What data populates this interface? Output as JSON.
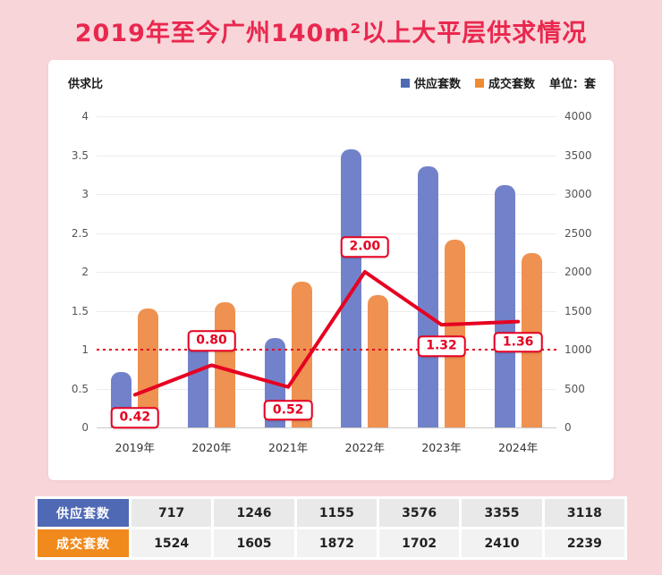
{
  "page": {
    "title": "2019年至今广州140m²以上大平层供求情况",
    "background_color": "#f8d5d8",
    "title_color": "#e9284f"
  },
  "chart": {
    "left_axis_title": "供求比",
    "legend": [
      {
        "label": "供应套数",
        "color": "#4f69b5"
      },
      {
        "label": "成交套数",
        "color": "#ef8b33"
      }
    ],
    "unit_label": "单位：套"
  },
  "chart_data": {
    "type": "bar",
    "categories": [
      "2019年",
      "2020年",
      "2021年",
      "2022年",
      "2023年",
      "2024年"
    ],
    "series": [
      {
        "name": "供应套数",
        "type": "bar",
        "axis": "right",
        "color": "#7282ca",
        "values": [
          717,
          1246,
          1155,
          3576,
          3355,
          3118
        ]
      },
      {
        "name": "成交套数",
        "type": "bar",
        "axis": "right",
        "color": "#ef9150",
        "values": [
          1524,
          1605,
          1872,
          1702,
          2410,
          2239
        ]
      },
      {
        "name": "供求比",
        "type": "line",
        "axis": "left",
        "color": "#e60021",
        "values": [
          0.42,
          0.8,
          0.52,
          2.0,
          1.32,
          1.36
        ],
        "labels": [
          "0.42",
          "0.80",
          "0.52",
          "2.00",
          "1.32",
          "1.36"
        ]
      }
    ],
    "left_axis": {
      "label": "供求比",
      "min": 0,
      "max": 4,
      "ticks": [
        0,
        0.5,
        1,
        1.5,
        2,
        2.5,
        3,
        3.5,
        4
      ]
    },
    "right_axis": {
      "label": "单位：套",
      "min": 0,
      "max": 4000,
      "ticks": [
        0,
        500,
        1000,
        1500,
        2000,
        2500,
        3000,
        3500,
        4000
      ]
    },
    "reference_line": {
      "value": 1,
      "style": "dotted",
      "color": "#e60021"
    },
    "grid": true,
    "legend_position": "top-right"
  },
  "table": {
    "rows": [
      {
        "label": "供应套数",
        "color": "#4f69b5",
        "cell_bg": "#e9e9e9",
        "values": [
          "717",
          "1246",
          "1155",
          "3576",
          "3355",
          "3118"
        ]
      },
      {
        "label": "成交套数",
        "color": "#f08a1d",
        "cell_bg": "#f2f2f2",
        "values": [
          "1524",
          "1605",
          "1872",
          "1702",
          "2410",
          "2239"
        ]
      }
    ]
  }
}
